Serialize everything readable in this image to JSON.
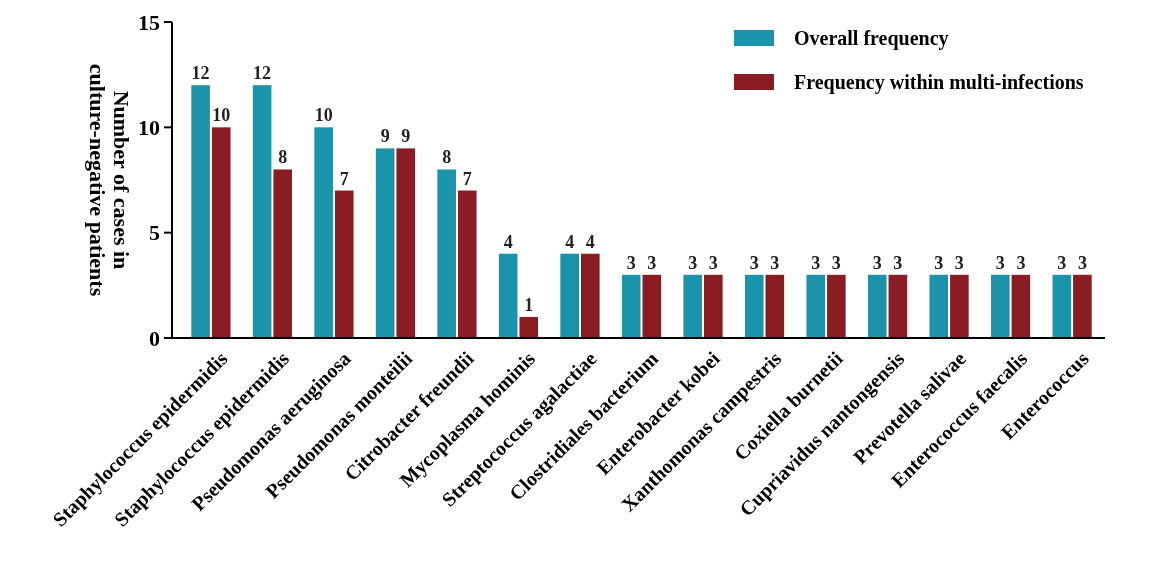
{
  "chart_data": {
    "type": "bar",
    "ylabel": "Number of  cases in\nculture-negative patients",
    "categories": [
      "Staphylococcus epidermidis",
      "Staphylococcus epidermidis",
      "Pseudomonas aeruginosa",
      "Pseudomonas monteilii",
      "Citrobacter freundii",
      "Mycoplasma hominis",
      "Streptococcus agalactiae",
      "Clostridiales bacterium",
      "Enterobacter kobei",
      "Xanthomonas campestris",
      "Coxiella burnetii",
      "Cupriavidus nantongensis",
      "Prevotella salivae",
      "Enterococcus faecalis",
      "Enterococcus"
    ],
    "series": [
      {
        "name": "Overall frequency",
        "color": "#1b93ab",
        "values": [
          12,
          12,
          10,
          9,
          8,
          4,
          4,
          3,
          3,
          3,
          3,
          3,
          3,
          3,
          3
        ]
      },
      {
        "name": "Frequency within multi-infections",
        "color": "#8a1c24",
        "values": [
          10,
          8,
          7,
          9,
          7,
          1,
          4,
          3,
          3,
          3,
          3,
          3,
          3,
          3,
          3
        ]
      }
    ],
    "ylim": [
      0,
      15
    ],
    "yticks": [
      0,
      5,
      10,
      15
    ],
    "data_labels": true,
    "legend": "top right",
    "grid": false
  }
}
